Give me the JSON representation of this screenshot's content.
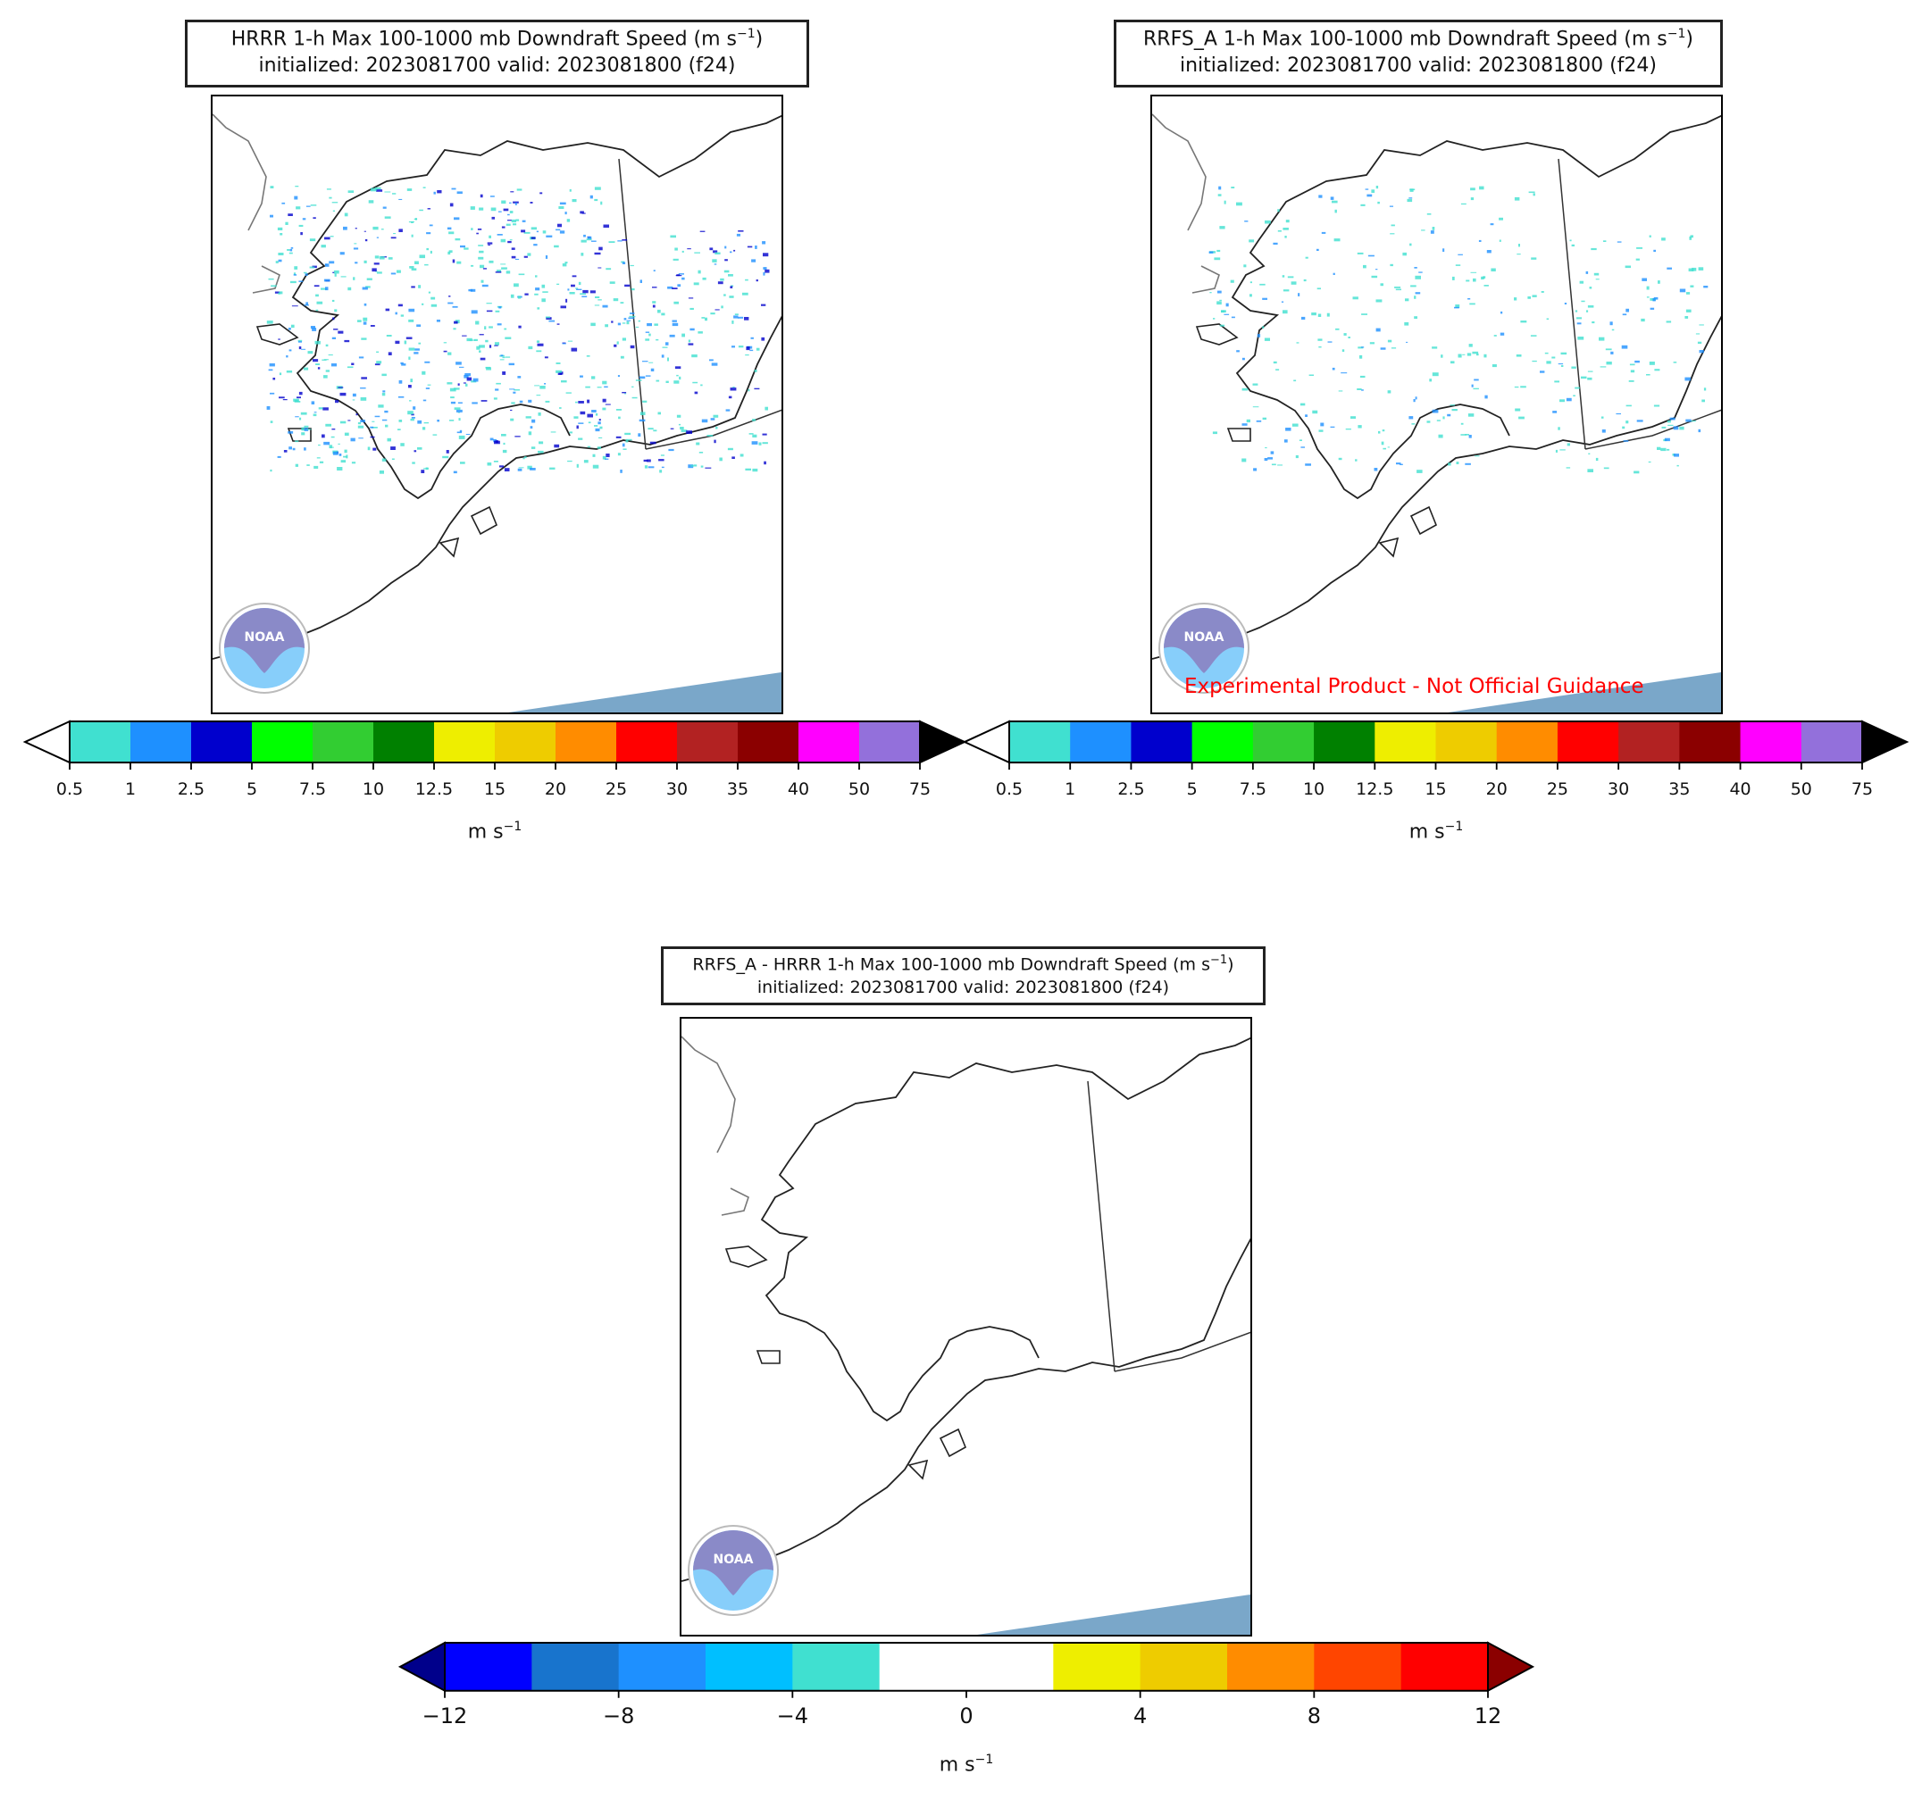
{
  "panels": [
    {
      "id": "hrrr",
      "title_line1": "HRRR 1-h Max 100-1000 mb Downdraft Speed (m s",
      "title_sup": "−1",
      "title_close": ")",
      "title_line2": "initialized: 2023081700 valid: 2023081800 (f24)"
    },
    {
      "id": "rrfs",
      "title_line1": "RRFS_A 1-h Max 100-1000 mb Downdraft Speed (m s",
      "title_sup": "−1",
      "title_close": ")",
      "title_line2": "initialized: 2023081700 valid: 2023081800 (f24)",
      "watermark": "Experimental Product - Not Official Guidance"
    },
    {
      "id": "diff",
      "title_line1": "RRFS_A - HRRR 1-h Max 100-1000 mb Downdraft Speed (m s",
      "title_sup": "−1",
      "title_close": ")",
      "title_line2": "initialized: 2023081700 valid: 2023081800 (f24)"
    }
  ],
  "logo_text": "NOAA",
  "colorbars": {
    "speed": {
      "unit": "m s",
      "unit_sup": "−1",
      "ticks": [
        "0.5",
        "1",
        "2.5",
        "5",
        "7.5",
        "10",
        "12.5",
        "15",
        "20",
        "25",
        "30",
        "35",
        "40",
        "50",
        "75"
      ],
      "colors": [
        "#40e0d0",
        "#1e90ff",
        "#0000cd",
        "#00ff00",
        "#32cd32",
        "#008000",
        "#eeee00",
        "#eecc00",
        "#ff8c00",
        "#ff0000",
        "#b22222",
        "#8b0000",
        "#ff00ff",
        "#9370db"
      ],
      "under_color": "#ffffff",
      "over_color": "#000000"
    },
    "diff": {
      "unit": "m s",
      "unit_sup": "−1",
      "ticks": [
        "−12",
        "−8",
        "−4",
        "0",
        "4",
        "8",
        "12"
      ],
      "colors": [
        "#0000ff",
        "#1874cd",
        "#1e90ff",
        "#00bfff",
        "#40e0d0",
        "#ffffff",
        "#ffffff",
        "#eeee00",
        "#eecc00",
        "#ff8c00",
        "#ff4500",
        "#ff0000"
      ],
      "under_color": "#00008b",
      "over_color": "#8b0000"
    }
  },
  "chart_data": [
    {
      "type": "heatmap",
      "title": "HRRR 1-h Max 100-1000 mb Downdraft Speed (m s−1)",
      "subtitle": "initialized: 2023081700 valid: 2023081800 (f24)",
      "legend_levels": [
        0.5,
        1,
        2.5,
        5,
        7.5,
        10,
        12.5,
        15,
        20,
        25,
        30,
        35,
        40,
        50,
        75
      ],
      "unit": "m s−1"
    },
    {
      "type": "heatmap",
      "title": "RRFS_A 1-h Max 100-1000 mb Downdraft Speed (m s−1)",
      "subtitle": "initialized: 2023081700 valid: 2023081800 (f24)",
      "legend_levels": [
        0.5,
        1,
        2.5,
        5,
        7.5,
        10,
        12.5,
        15,
        20,
        25,
        30,
        35,
        40,
        50,
        75
      ],
      "unit": "m s−1"
    },
    {
      "type": "heatmap",
      "title": "RRFS_A - HRRR 1-h Max 100-1000 mb Downdraft Speed (m s−1)",
      "subtitle": "initialized: 2023081700 valid: 2023081800 (f24)",
      "legend_levels": [
        -12,
        -10,
        -8,
        -6,
        -4,
        -2,
        0,
        2,
        4,
        6,
        8,
        10,
        12
      ],
      "unit": "m s−1"
    }
  ]
}
